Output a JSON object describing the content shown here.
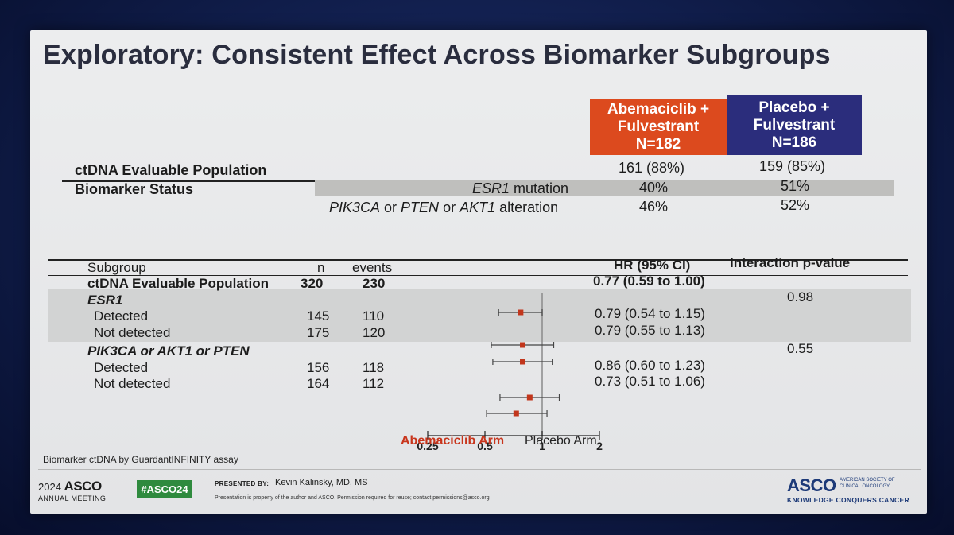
{
  "title": "Exploratory: Consistent Effect Across Biomarker Subgroups",
  "colors": {
    "abema": "#dc4a1e",
    "placebo": "#2b2d7c",
    "marker": "#c2361c"
  },
  "arms": {
    "abema": {
      "line1": "Abemaciclib +",
      "line2": "Fulvestrant",
      "line3": "N=182"
    },
    "placebo": {
      "line1": "Placebo +",
      "line2": "Fulvestrant",
      "line3": "N=186"
    }
  },
  "top_table": {
    "evaluable_label": "ctDNA Evaluable Population",
    "evaluable_abema": "161 (88%)",
    "evaluable_placebo": "159 (85%)",
    "biomarker_label": "Biomarker Status",
    "esr1_gene": "ESR1",
    "esr1_suffix": " mutation",
    "esr1_abema": "40%",
    "esr1_placebo": "51%",
    "pik_gene1": "PIK3CA",
    "pik_or1": " or ",
    "pik_gene2": "PTEN",
    "pik_or2": " or ",
    "pik_gene3": "AKT1",
    "pik_suffix": " alteration",
    "pik_abema": "46%",
    "pik_placebo": "52%"
  },
  "forest_headers": {
    "subgroup": "Subgroup",
    "n": "n",
    "events": "events",
    "hr": "HR (95% CI)",
    "interaction": "Interaction p-value"
  },
  "chart_data": {
    "type": "forest",
    "scale": "log",
    "xlim": [
      0.25,
      2
    ],
    "xticks": [
      "0.25",
      "0.5",
      "1",
      "2"
    ],
    "reference_line": 1,
    "rows": [
      {
        "label": "ctDNA Evaluable Population",
        "n": "320",
        "events": "230",
        "hr": 0.77,
        "lo": 0.59,
        "hi": 1.0,
        "hr_text": "0.77 (0.59 to 1.00)",
        "bold": true
      },
      {
        "label": "ESR1",
        "group_header": true,
        "italic": true,
        "p_value": "0.98"
      },
      {
        "label": "Detected",
        "n": "145",
        "events": "110",
        "hr": 0.79,
        "lo": 0.54,
        "hi": 1.15,
        "hr_text": "0.79 (0.54 to 1.15)"
      },
      {
        "label": "Not detected",
        "n": "175",
        "events": "120",
        "hr": 0.79,
        "lo": 0.55,
        "hi": 1.13,
        "hr_text": "0.79 (0.55 to 1.13)"
      },
      {
        "label": "PIK3CA or AKT1 or PTEN",
        "group_header": true,
        "italic": true,
        "p_value": "0.55"
      },
      {
        "label": "Detected",
        "n": "156",
        "events": "118",
        "hr": 0.86,
        "lo": 0.6,
        "hi": 1.23,
        "hr_text": "0.86 (0.60 to 1.23)"
      },
      {
        "label": "Not detected",
        "n": "164",
        "events": "112",
        "hr": 0.73,
        "lo": 0.51,
        "hi": 1.06,
        "hr_text": "0.73 (0.51 to 1.06)"
      }
    ],
    "left_arrow_label": "Abemaciclib Arm",
    "right_arrow_label": "Placebo Arm"
  },
  "footnote": "Biomarker ctDNA by GuardantINFINITY assay",
  "footer": {
    "year": "2024",
    "asco": "ASCO",
    "annual_meeting": "ANNUAL MEETING",
    "hashtag": "#ASCO24",
    "presented_by_label": "PRESENTED BY:",
    "presenter": "Kevin Kalinsky, MD, MS",
    "property_note": "Presentation is property of the author and ASCO. Permission required for reuse; contact permissions@asco.org",
    "logo_asco": "ASCO",
    "society_line1": "AMERICAN SOCIETY OF",
    "society_line2": "CLINICAL ONCOLOGY",
    "tagline": "KNOWLEDGE CONQUERS CANCER"
  }
}
